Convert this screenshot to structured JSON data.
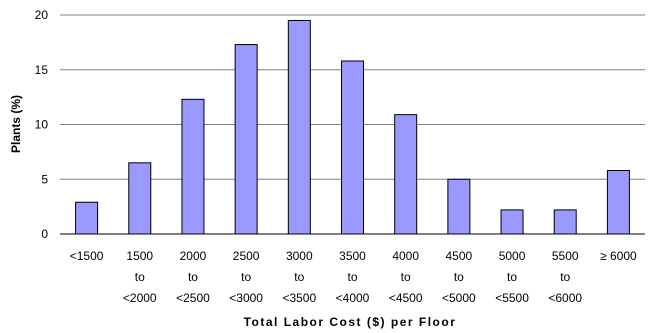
{
  "chart_data": {
    "type": "bar",
    "title": "",
    "xlabel": "Total Labor Cost ($) per Floor",
    "ylabel": "Plants (%)",
    "ylim": [
      0,
      20
    ],
    "yticks": [
      0,
      5,
      10,
      15,
      20
    ],
    "grid": true,
    "bar_color": "#9999FF",
    "categories": [
      [
        "<1500"
      ],
      [
        "1500",
        "to",
        "<2000"
      ],
      [
        "2000",
        "to",
        "<2500"
      ],
      [
        "2500",
        "to",
        "<3000"
      ],
      [
        "3000",
        "to",
        "<3500"
      ],
      [
        "3500",
        "to",
        "<4000"
      ],
      [
        "4000",
        "to",
        "<4500"
      ],
      [
        "4500",
        "to",
        "<5000"
      ],
      [
        "5000",
        "to",
        "<5500"
      ],
      [
        "5500",
        "to",
        "<6000"
      ],
      [
        "≥ 6000"
      ]
    ],
    "values": [
      2.9,
      6.5,
      12.3,
      17.3,
      19.5,
      15.8,
      10.9,
      5.0,
      2.2,
      2.2,
      5.8
    ]
  }
}
